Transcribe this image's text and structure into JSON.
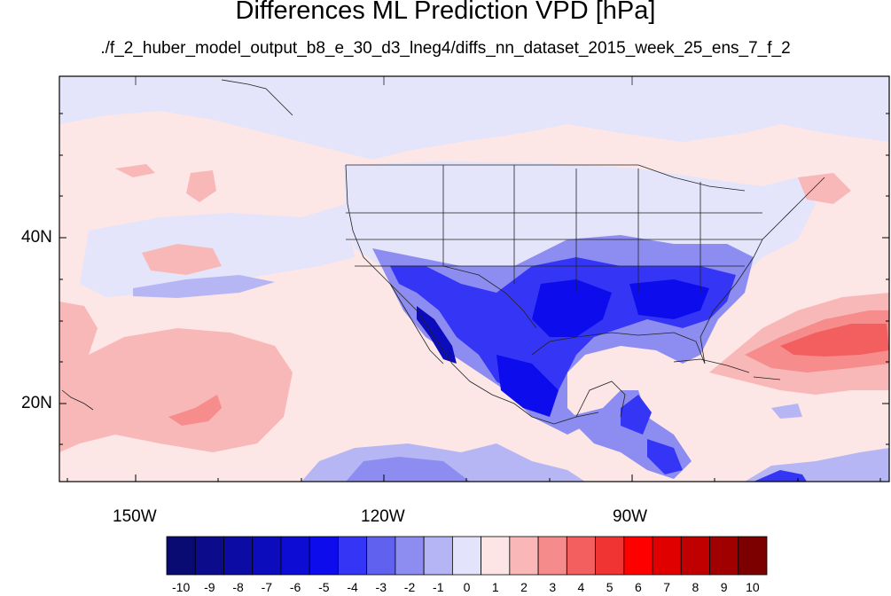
{
  "title": "Differences ML Prediction VPD [hPa]",
  "subtitle": "./f_2_huber_model_output_b8_e_30_d3_lneg4/diffs_nn_dataset_2015_week_25_ens_7_f_2",
  "axes": {
    "x_ticks": [
      "150W",
      "120W",
      "90W"
    ],
    "y_ticks": [
      "40N",
      "20N"
    ]
  },
  "colorbar": {
    "labels": [
      "-10",
      "-9",
      "-8",
      "-7",
      "-6",
      "-5",
      "-4",
      "-3",
      "-2",
      "-1",
      "0",
      "1",
      "2",
      "3",
      "4",
      "5",
      "6",
      "7",
      "8",
      "9",
      "10"
    ],
    "colors": [
      "#0a0a73",
      "#0b0b8c",
      "#0c0ca4",
      "#0c0cbc",
      "#0c0cd4",
      "#0c0cec",
      "#3535f5",
      "#6161f0",
      "#8d8df1",
      "#b5b5f5",
      "#e3e3fb",
      "#fde5e5",
      "#f9b7b7",
      "#f68b8b",
      "#f35f5f",
      "#f03434",
      "#fe0000",
      "#e00000",
      "#c00000",
      "#a00000",
      "#7c0000"
    ]
  },
  "palette": {
    "ocean": "#fde6e6",
    "warm_light": "#f9b8b8",
    "warm_mid": "#f68c8c",
    "warm_strong": "#f35f5f",
    "cool_faint": "#e4e4fb",
    "cool_light": "#b6b6f5",
    "cool_mid": "#8d8df1",
    "cool_strong": "#6161f0",
    "cool_deep": "#3535f5",
    "cool_darker": "#0c0cec",
    "cool_darkest": "#0c0cbc"
  }
}
